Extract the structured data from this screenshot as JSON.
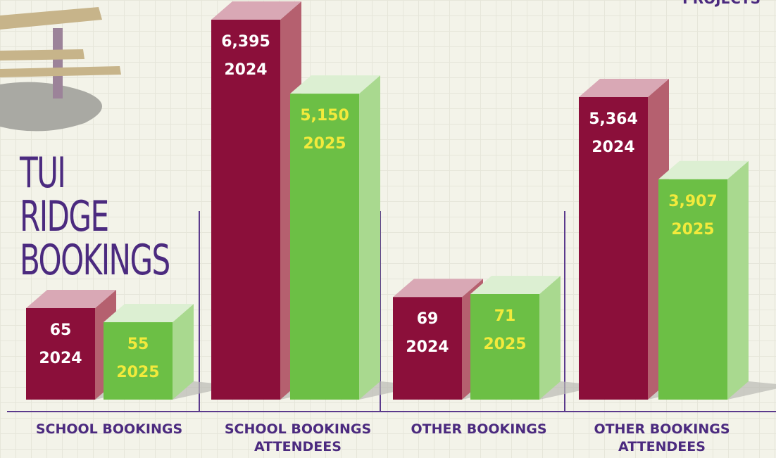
{
  "chart_data": {
    "type": "bar3d",
    "title": "TUI RIDGE BOOKINGS",
    "annotation": "PROJECTS",
    "categories": [
      "SCHOOL BOOKINGS",
      "SCHOOL BOOKINGS ATTENDEES",
      "OTHER BOOKINGS",
      "OTHER BOOKINGS ATTENDEES"
    ],
    "series": [
      {
        "name": "2024",
        "color": "#8b0f3a",
        "values": [
          65,
          6395,
          69,
          5364
        ],
        "value_labels": [
          "65",
          "6,395",
          "69",
          "5,364"
        ]
      },
      {
        "name": "2025",
        "color": "#6cbf45",
        "values": [
          55,
          5150,
          71,
          3907
        ],
        "value_labels": [
          "55",
          "5,150",
          "71",
          "3,907"
        ]
      }
    ]
  }
}
